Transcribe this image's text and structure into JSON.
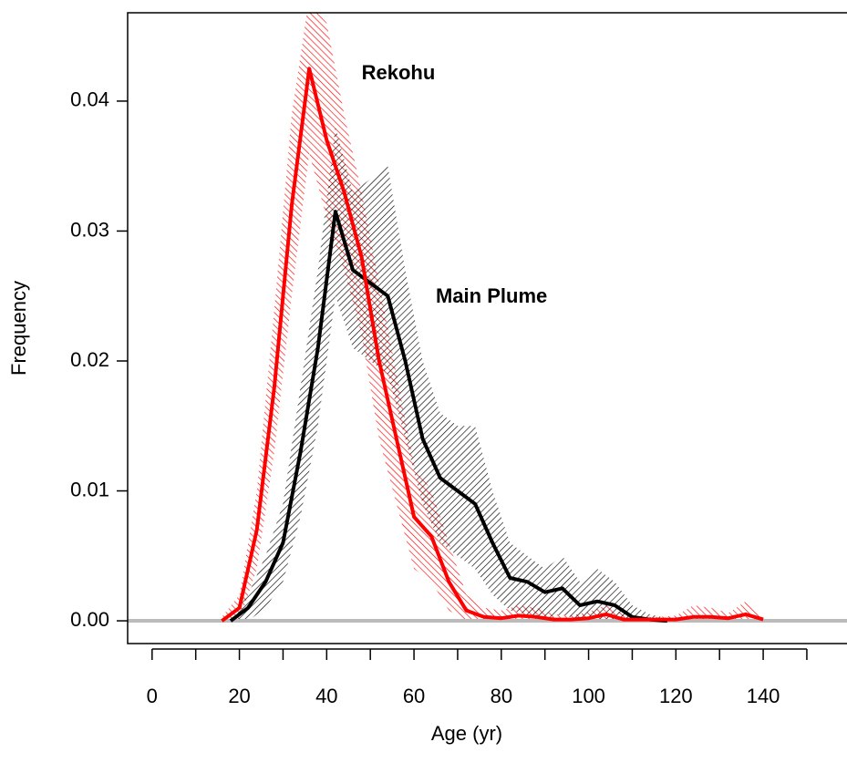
{
  "chart_data": {
    "type": "line",
    "x_label": "Age (yr)",
    "y_label": "Frequency",
    "xlim": [
      -5.6,
      159.2
    ],
    "ylim": [
      -0.00175,
      0.0468
    ],
    "xticks": [
      0,
      20,
      40,
      60,
      80,
      100,
      120,
      140
    ],
    "xminorticks": [
      10,
      30,
      50,
      70,
      90,
      110,
      130,
      150
    ],
    "yticks": [
      {
        "value": 0,
        "label": "0.00"
      },
      0.01,
      0.02,
      0.03,
      0.04
    ],
    "zero_line_color": "#bbbbbb",
    "annotations": [
      {
        "text": "Rekohu",
        "color": "#ff0000",
        "x": 48,
        "y": 0.0421
      },
      {
        "text": "Main Plume",
        "color": "#000000",
        "x": 65,
        "y": 0.0249
      }
    ],
    "series": [
      {
        "name": "Rekohu",
        "color": "#ff0000",
        "x": [
          16,
          20,
          24,
          28,
          32,
          36,
          40,
          44,
          48,
          52,
          56,
          60,
          64,
          68,
          72,
          76,
          80,
          84,
          88,
          92,
          96,
          100,
          104,
          108,
          112,
          116,
          120,
          124,
          128,
          132,
          136,
          140
        ],
        "values": [
          0,
          0.001,
          0.007,
          0.018,
          0.032,
          0.0425,
          0.037,
          0.033,
          0.028,
          0.02,
          0.014,
          0.008,
          0.0065,
          0.003,
          0.0008,
          0.0003,
          0.0002,
          0.0004,
          0.0003,
          0.0001,
          0.0001,
          0.0002,
          0.0005,
          0.0001,
          0.0001,
          0.0001,
          0.0001,
          0.0003,
          0.0003,
          0.0002,
          0.0005,
          0.0001
        ],
        "lower": [
          0,
          0,
          0.004,
          0.013,
          0.025,
          0.036,
          0.031,
          0.027,
          0.022,
          0.014,
          0.009,
          0.004,
          0.003,
          0.0008,
          0,
          0,
          0,
          0,
          0,
          0,
          0,
          0,
          0,
          0,
          0,
          0,
          0,
          0,
          0,
          0,
          0,
          0
        ],
        "upper": [
          0.0003,
          0.002,
          0.01,
          0.024,
          0.039,
          0.048,
          0.046,
          0.039,
          0.033,
          0.026,
          0.019,
          0.012,
          0.01,
          0.006,
          0.002,
          0.001,
          0.0008,
          0.0012,
          0.001,
          0.0005,
          0.0004,
          0.0007,
          0.0012,
          0.0005,
          0.0003,
          0.0003,
          0.0004,
          0.0012,
          0.001,
          0.0006,
          0.0015,
          0.0004
        ]
      },
      {
        "name": "Main Plume",
        "color": "#000000",
        "x": [
          18,
          22,
          26,
          30,
          34,
          38,
          42,
          46,
          50,
          54,
          58,
          62,
          66,
          70,
          74,
          78,
          82,
          86,
          90,
          94,
          98,
          102,
          106,
          110,
          114,
          118
        ],
        "values": [
          0,
          0.001,
          0.003,
          0.006,
          0.013,
          0.021,
          0.0315,
          0.027,
          0.026,
          0.025,
          0.02,
          0.014,
          0.011,
          0.01,
          0.009,
          0.006,
          0.0033,
          0.003,
          0.0022,
          0.0025,
          0.0012,
          0.0015,
          0.0012,
          0.0003,
          0.0001,
          0
        ],
        "lower": [
          0,
          0,
          0.001,
          0.003,
          0.008,
          0.015,
          0.025,
          0.021,
          0.02,
          0.019,
          0.014,
          0.009,
          0.006,
          0.005,
          0.004,
          0.002,
          0.0008,
          0.0005,
          0.0002,
          0.0005,
          0,
          0,
          0,
          0,
          0,
          0
        ],
        "upper": [
          0.0002,
          0.002,
          0.005,
          0.009,
          0.018,
          0.027,
          0.038,
          0.033,
          0.034,
          0.035,
          0.027,
          0.02,
          0.016,
          0.015,
          0.015,
          0.01,
          0.006,
          0.005,
          0.004,
          0.005,
          0.003,
          0.004,
          0.003,
          0.0012,
          0.0005,
          0.0002
        ]
      }
    ]
  }
}
